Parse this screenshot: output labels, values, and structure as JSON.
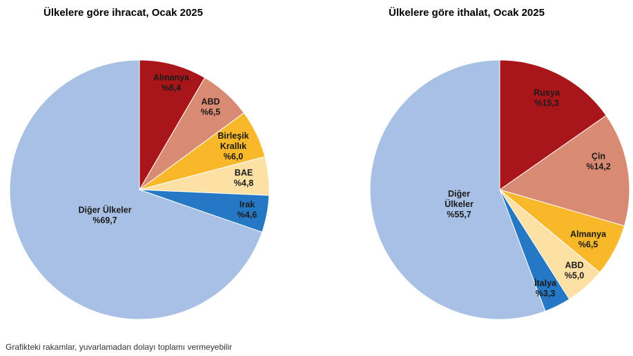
{
  "chart_data": [
    {
      "type": "pie",
      "title": "Ülkelere göre ihracat, Ocak 2025",
      "start_angle_deg": 0,
      "direction": "clockwise",
      "slices": [
        {
          "label": [
            "Almanya",
            "%8,4"
          ],
          "value": 8.4,
          "color": "#A8161A"
        },
        {
          "label": [
            "ABD",
            "%6,5"
          ],
          "value": 6.5,
          "color": "#D98A73"
        },
        {
          "label": [
            "Birleşik",
            "Krallık",
            "%6,0"
          ],
          "value": 6.0,
          "color": "#F9B82A"
        },
        {
          "label": [
            "BAE",
            "%4,8"
          ],
          "value": 4.8,
          "color": "#FCE0A4"
        },
        {
          "label": [
            "Irak",
            "%4,6"
          ],
          "value": 4.6,
          "color": "#2478C4"
        },
        {
          "label": [
            "Diğer Ülkeler",
            "%69,7"
          ],
          "value": 69.7,
          "color": "#A8C0E4"
        }
      ]
    },
    {
      "type": "pie",
      "title": "Ülkelere göre ithalat, Ocak 2025",
      "start_angle_deg": 0,
      "direction": "clockwise",
      "slices": [
        {
          "label": [
            "Rusya",
            "%15,3"
          ],
          "value": 15.3,
          "color": "#A8161A"
        },
        {
          "label": [
            "Çin",
            "%14,2"
          ],
          "value": 14.2,
          "color": "#D98A73"
        },
        {
          "label": [
            "Almanya",
            "%6,5"
          ],
          "value": 6.5,
          "color": "#F9B82A"
        },
        {
          "label": [
            "ABD",
            "%5,0"
          ],
          "value": 5.0,
          "color": "#FCE0A4"
        },
        {
          "label": [
            "İtalya",
            "%3,3"
          ],
          "value": 3.3,
          "color": "#2478C4"
        },
        {
          "label": [
            "Diğer",
            "Ülkeler",
            "%55,7"
          ],
          "value": 55.7,
          "color": "#A8C0E4"
        }
      ]
    }
  ],
  "footnote": "Grafikteki rakamlar, yuvarlamadan dolayı toplamı vermeyebilir"
}
